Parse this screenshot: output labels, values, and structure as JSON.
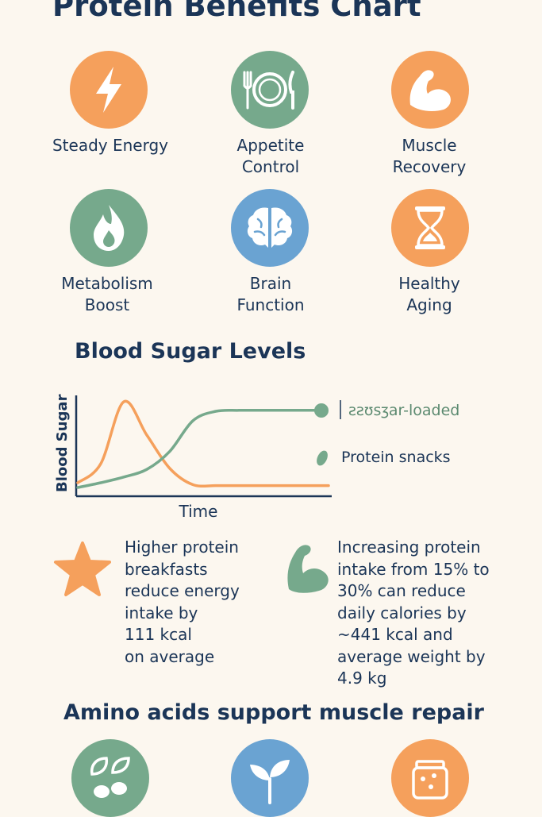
{
  "title": "Protein Benefits Chart",
  "colors": {
    "orange": "#f5a05c",
    "green": "#76a98c",
    "blue": "#6aa3d2",
    "navy": "#1b3557",
    "background": "#fcf7ef"
  },
  "benefits": [
    {
      "icon": "lightning-icon",
      "color": "orange",
      "label_lines": [
        "Steady Energy"
      ]
    },
    {
      "icon": "plate-fork-knife-icon",
      "color": "green",
      "label_lines": [
        "Appetite",
        "Control"
      ]
    },
    {
      "icon": "flexed-arm-icon",
      "color": "orange",
      "label_lines": [
        "Muscle",
        "Recovery"
      ]
    },
    {
      "icon": "flame-icon",
      "color": "green",
      "label_lines": [
        "Metabolism",
        "Boost"
      ]
    },
    {
      "icon": "brain-icon",
      "color": "blue",
      "label_lines": [
        "Brain",
        "Function"
      ]
    },
    {
      "icon": "hourglass-icon",
      "color": "orange",
      "label_lines": [
        "Healthy",
        "Aging"
      ]
    }
  ],
  "blood_sugar_title": "Blood Sugar Levels",
  "chart_data": {
    "type": "line",
    "title": "Blood Sugar Levels",
    "xlabel": "Time",
    "ylabel": "Blood Sugar",
    "x": [
      0,
      1,
      2,
      3,
      4,
      5,
      6,
      7,
      8,
      9,
      10
    ],
    "series": [
      {
        "name": "ƨƨʊѕⳅar-loaded",
        "color": "orange",
        "values": [
          1,
          3,
          9.5,
          6,
          2.5,
          0.8,
          0.7,
          0.7,
          0.7,
          0.7,
          0.7
        ]
      },
      {
        "name": "Protein snacks",
        "color": "green",
        "values": [
          0.5,
          1,
          1.6,
          2.4,
          4.3,
          7.5,
          8.5,
          8.6,
          8.6,
          8.6,
          8.6
        ]
      }
    ],
    "ylim": [
      0,
      11
    ],
    "grid": false,
    "legend": "right"
  },
  "stats": [
    {
      "icon": "star-icon",
      "text": "Higher protein\nbreakfasts\nreduce energy\nintake by\n111 kcal\non average"
    },
    {
      "icon": "flexed-arm-icon",
      "text": "Increasing protein\nintake from 15% to\n30% can reduce\ndaily calories by\n~441 kcal and\naverage weight by\n4.9 kg"
    }
  ],
  "amino_title": "Amino acids support muscle repair",
  "amino_icons": [
    {
      "icon": "beans-leaves-icon",
      "color": "green"
    },
    {
      "icon": "sprout-icon",
      "color": "blue"
    },
    {
      "icon": "jar-icon",
      "color": "orange"
    }
  ]
}
